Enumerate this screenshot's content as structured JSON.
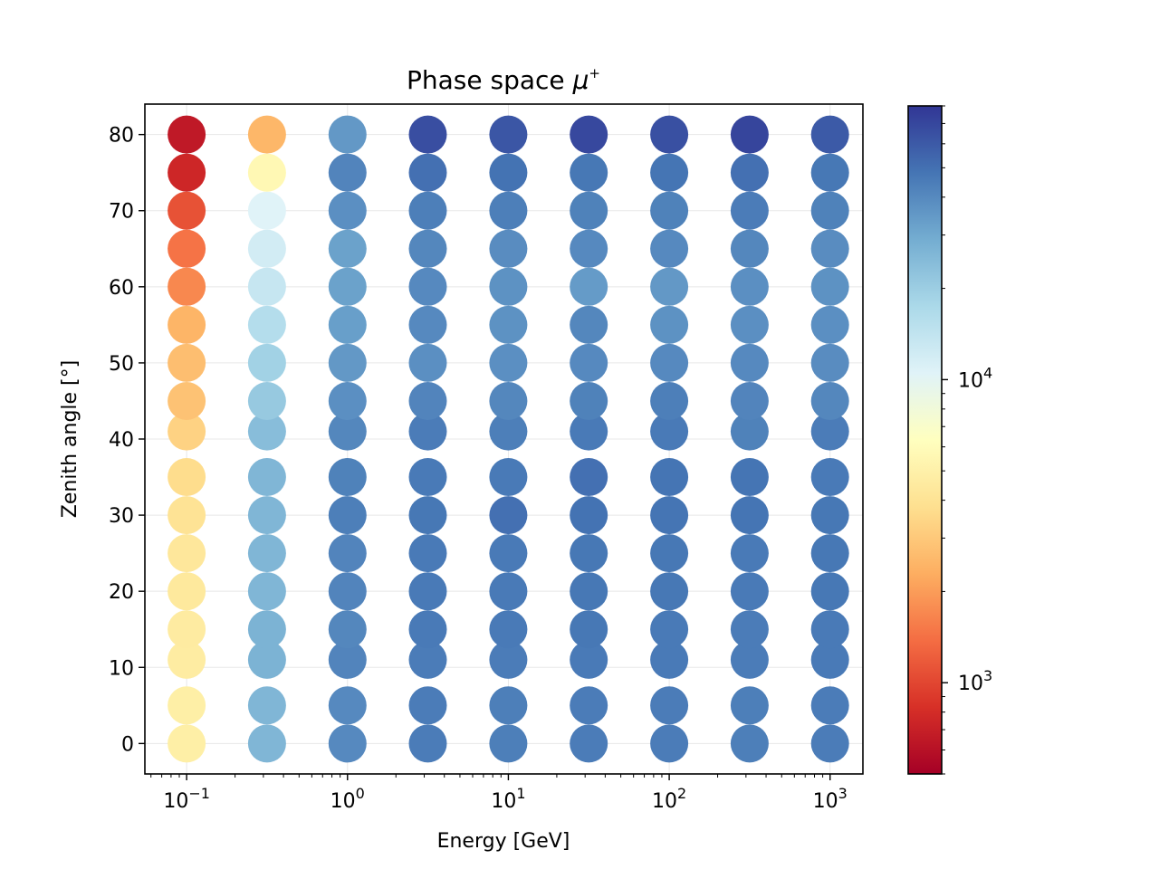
{
  "chart_data": {
    "type": "scatter",
    "title_main": "Phase space ",
    "title_symbol": "μ",
    "title_superscript": "+",
    "xlabel": "Energy [GeV]",
    "ylabel": "Zenith angle [°]",
    "xscale": "log",
    "xlim": [
      0.055,
      1600
    ],
    "ylim": [
      -4,
      84
    ],
    "x_ticks": [
      {
        "value": 0.1,
        "base": "10",
        "exp": "−1"
      },
      {
        "value": 1,
        "base": "10",
        "exp": "0"
      },
      {
        "value": 10,
        "base": "10",
        "exp": "1"
      },
      {
        "value": 100,
        "base": "10",
        "exp": "2"
      },
      {
        "value": 1000,
        "base": "10",
        "exp": "3"
      }
    ],
    "y_ticks": [
      0,
      10,
      20,
      30,
      40,
      50,
      60,
      70,
      80
    ],
    "energies": [
      0.1,
      0.316,
      1,
      3.16,
      10,
      31.6,
      100,
      316,
      1000
    ],
    "zenith_angles": [
      0,
      5,
      11,
      15,
      20,
      25,
      30,
      35,
      41,
      45,
      50,
      55,
      60,
      65,
      70,
      75,
      80
    ],
    "values_by_energy": [
      [
        4850,
        4850,
        4600,
        4550,
        4400,
        4300,
        4000,
        3700,
        3300,
        2800,
        2700,
        2450,
        1700,
        1450,
        1100,
        750,
        650
      ],
      [
        26000,
        26000,
        27000,
        27000,
        26000,
        26000,
        26000,
        26000,
        24000,
        21000,
        19000,
        16000,
        13500,
        12000,
        10500,
        5600,
        2500
      ],
      [
        40000,
        40000,
        42000,
        41000,
        42000,
        42000,
        44000,
        43000,
        41000,
        38000,
        35000,
        33000,
        32000,
        32000,
        38000,
        42000,
        35000
      ],
      [
        45000,
        45000,
        45000,
        46000,
        46000,
        46000,
        47000,
        46000,
        45000,
        42000,
        38000,
        40000,
        40000,
        41000,
        44000,
        50000,
        66000
      ],
      [
        44000,
        44000,
        45000,
        46000,
        46000,
        46000,
        50000,
        46000,
        44000,
        41000,
        38000,
        37000,
        37000,
        39000,
        44000,
        49000,
        62000
      ],
      [
        45000,
        45000,
        46000,
        47000,
        47000,
        47000,
        49000,
        50000,
        46000,
        43000,
        40000,
        41000,
        34000,
        40000,
        43000,
        47000,
        69000
      ],
      [
        45000,
        45000,
        46000,
        46000,
        47000,
        47000,
        48000,
        48000,
        46000,
        44000,
        40000,
        37000,
        35000,
        40000,
        43000,
        48000,
        65000
      ],
      [
        44000,
        44000,
        45000,
        45000,
        46000,
        46000,
        48000,
        48000,
        43000,
        42000,
        40000,
        38000,
        38000,
        41000,
        45000,
        50000,
        71000
      ],
      [
        45000,
        45000,
        46000,
        46000,
        47000,
        47000,
        47000,
        46000,
        45000,
        41000,
        39000,
        38000,
        37000,
        39000,
        43000,
        47000,
        60000
      ]
    ],
    "colormap": "RdYlBu",
    "color_scale": "log",
    "vmin": 500,
    "vmax": 80000,
    "colorbar_ticks": [
      {
        "value": 1000,
        "base": "10",
        "exp": "3"
      },
      {
        "value": 10000,
        "base": "10",
        "exp": "4"
      }
    ],
    "grid": true
  }
}
